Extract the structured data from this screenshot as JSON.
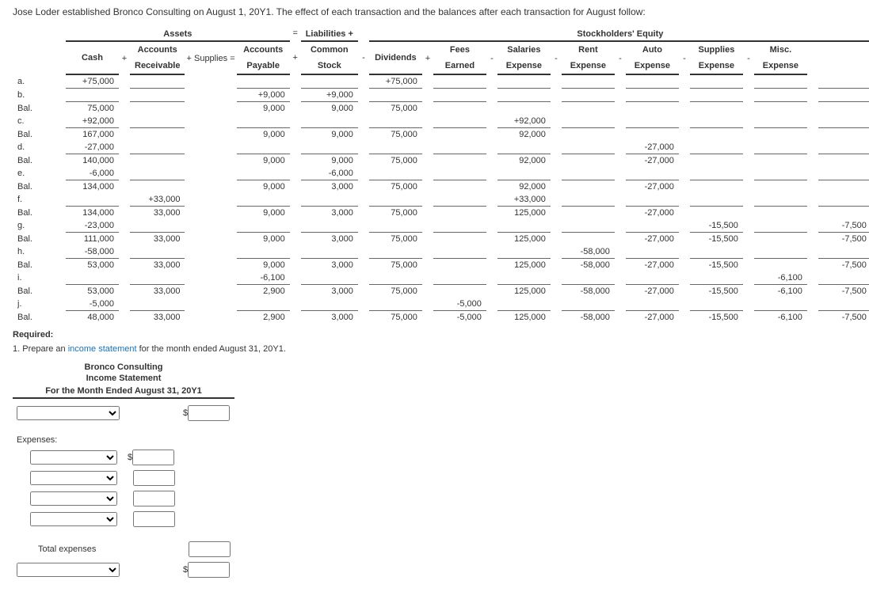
{
  "intro": "Jose Loder established Bronco Consulting on August 1, 20Y1. The effect of each transaction and the balances after each transaction for August follow:",
  "sections": {
    "assets": "Assets",
    "eq": "=",
    "liab": "Liabilities +",
    "se": "Stockholders' Equity"
  },
  "headers": {
    "cash": "Cash",
    "ar1": "Accounts",
    "ar2": "Receivable",
    "supplies": "Supplies",
    "ap1": "Accounts",
    "ap2": "Payable",
    "cs1": "Common",
    "cs2": "Stock",
    "div": "Dividends",
    "fe1": "Fees",
    "fe2": "Earned",
    "sal1": "Salaries",
    "sal2": "Expense",
    "rent1": "Rent",
    "rent2": "Expense",
    "auto1": "Auto",
    "auto2": "Expense",
    "sup1": "Supplies",
    "sup2": "Expense",
    "misc1": "Misc.",
    "misc2": "Expense"
  },
  "ops": {
    "plus": "+",
    "eq": "=",
    "minus": "-"
  },
  "rows": [
    {
      "l": "a.",
      "cash": "+75,000",
      "cs": "+75,000",
      "u": true
    },
    {
      "l": "b.",
      "supplies": "+9,000",
      "ap": "+9,000",
      "u": true,
      "u_sup": true,
      "u_ap": true
    },
    {
      "l": "Bal.",
      "cash": "75,000",
      "supplies": "9,000",
      "ap": "9,000",
      "cs": "75,000"
    },
    {
      "l": "c.",
      "cash": "+92,000",
      "fe": "+92,000",
      "u": true,
      "u_fe": true
    },
    {
      "l": "Bal.",
      "cash": "167,000",
      "supplies": "9,000",
      "ap": "9,000",
      "cs": "75,000",
      "fe": "92,000"
    },
    {
      "l": "d.",
      "cash": "-27,000",
      "rent": "-27,000",
      "u": true,
      "u_rent": true
    },
    {
      "l": "Bal.",
      "cash": "140,000",
      "supplies": "9,000",
      "ap": "9,000",
      "cs": "75,000",
      "fe": "92,000",
      "rent": "-27,000"
    },
    {
      "l": "e.",
      "cash": "-6,000",
      "ap": "-6,000",
      "u": true
    },
    {
      "l": "Bal.",
      "cash": "134,000",
      "supplies": "9,000",
      "ap": "3,000",
      "cs": "75,000",
      "fe": "92,000",
      "rent": "-27,000"
    },
    {
      "l": "f.",
      "ar": "+33,000",
      "fe": "+33,000",
      "u": true,
      "u_ar": true
    },
    {
      "l": "Bal.",
      "cash": "134,000",
      "ar": "33,000",
      "supplies": "9,000",
      "ap": "3,000",
      "cs": "75,000",
      "fe": "125,000",
      "rent": "-27,000"
    },
    {
      "l": "g.",
      "cash": "-23,000",
      "auto": "-15,500",
      "misc": "-7,500",
      "u": true,
      "u_auto": true,
      "u_misc": true
    },
    {
      "l": "Bal.",
      "cash": "111,000",
      "ar": "33,000",
      "supplies": "9,000",
      "ap": "3,000",
      "cs": "75,000",
      "fe": "125,000",
      "rent": "-27,000",
      "auto": "-15,500",
      "misc": "-7,500"
    },
    {
      "l": "h.",
      "cash": "-58,000",
      "sal": "-58,000",
      "u": true,
      "u_sal": true
    },
    {
      "l": "Bal.",
      "cash": "53,000",
      "ar": "33,000",
      "supplies": "9,000",
      "ap": "3,000",
      "cs": "75,000",
      "fe": "125,000",
      "sal": "-58,000",
      "rent": "-27,000",
      "auto": "-15,500",
      "misc": "-7,500"
    },
    {
      "l": "i.",
      "supplies": "-6,100",
      "supx": "-6,100",
      "u": true,
      "u_supx": true
    },
    {
      "l": "Bal.",
      "cash": "53,000",
      "ar": "33,000",
      "supplies": "2,900",
      "ap": "3,000",
      "cs": "75,000",
      "fe": "125,000",
      "sal": "-58,000",
      "rent": "-27,000",
      "auto": "-15,500",
      "supx": "-6,100",
      "misc": "-7,500"
    },
    {
      "l": "j.",
      "cash": "-5,000",
      "div": "-5,000",
      "u": true,
      "u_div": true
    },
    {
      "l": "Bal.",
      "cash": "48,000",
      "ar": "33,000",
      "supplies": "2,900",
      "ap": "3,000",
      "cs": "75,000",
      "div": "-5,000",
      "fe": "125,000",
      "sal": "-58,000",
      "rent": "-27,000",
      "auto": "-15,500",
      "supx": "-6,100",
      "misc": "-7,500"
    }
  ],
  "required": "Required:",
  "q1_pre": "1. Prepare an ",
  "q1_link": "income statement",
  "q1_post": " for the month ended August 31, 20Y1.",
  "stmt": {
    "h1": "Bronco Consulting",
    "h2": "Income Statement",
    "h3": "For the Month Ended August 31, 20Y1",
    "expenses": "Expenses:",
    "total_exp": "Total expenses"
  }
}
